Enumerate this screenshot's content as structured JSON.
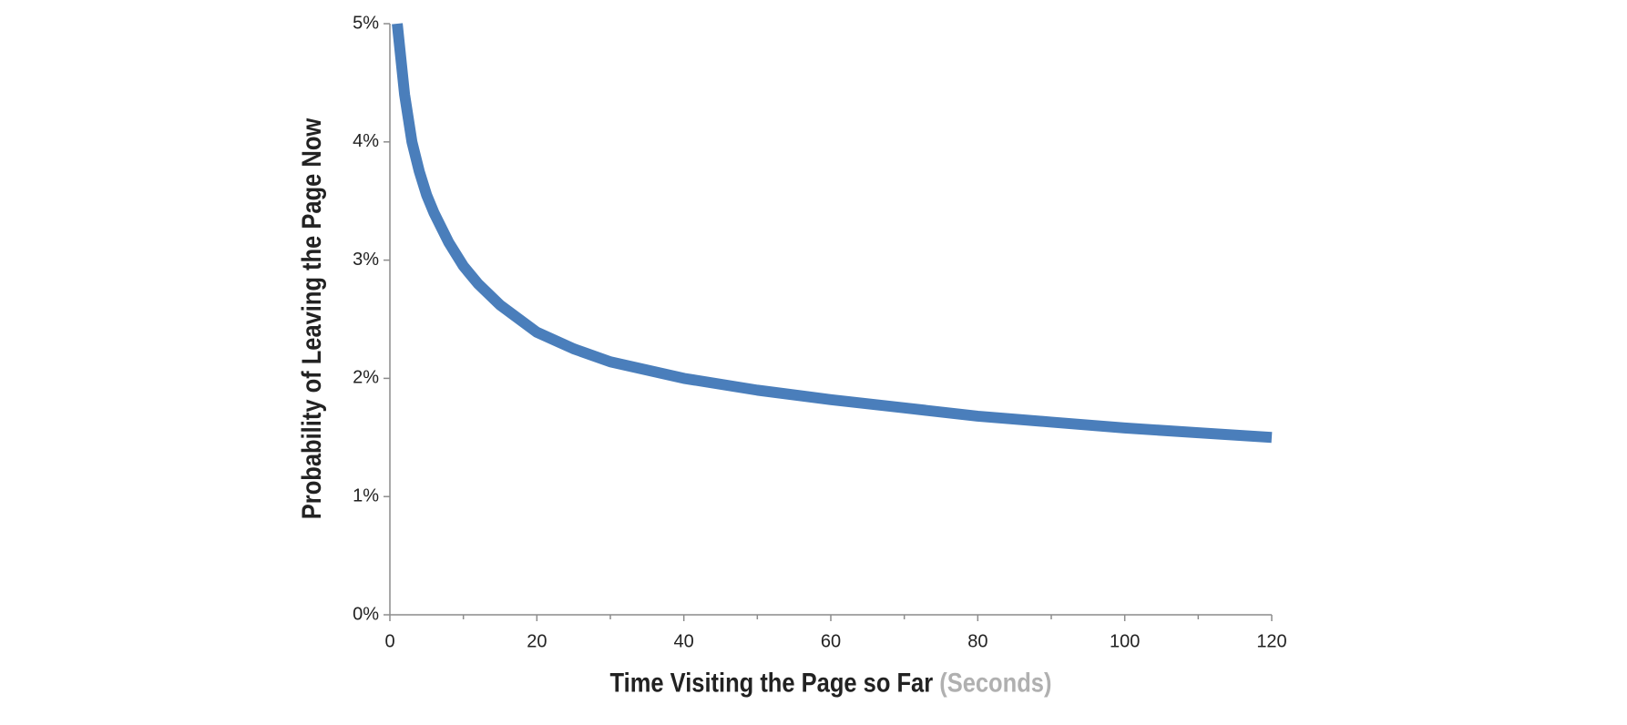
{
  "chart_data": {
    "type": "line",
    "ylabel": "Probability of Leaving  the Page Now",
    "xlabel": "Time Visiting the Page so Far",
    "xlabel_unit": "(Seconds)",
    "x": [
      1,
      2,
      3,
      4,
      5,
      6,
      8,
      10,
      12,
      15,
      20,
      25,
      30,
      40,
      50,
      60,
      70,
      80,
      90,
      100,
      110,
      120
    ],
    "series": [
      {
        "color": "#4a7ebb",
        "values": [
          5.0,
          4.4,
          4.0,
          3.75,
          3.55,
          3.4,
          3.15,
          2.95,
          2.8,
          2.62,
          2.39,
          2.25,
          2.14,
          2.0,
          1.9,
          1.82,
          1.75,
          1.68,
          1.63,
          1.58,
          1.54,
          1.5
        ]
      }
    ],
    "xlim": [
      0,
      120
    ],
    "xticks": [
      0,
      20,
      40,
      60,
      80,
      100,
      120
    ],
    "xminor_ticks": [
      10,
      30,
      50,
      70,
      90,
      110
    ],
    "ylim": [
      0,
      5
    ],
    "yticks": [
      {
        "value": 0,
        "label": "0%"
      },
      {
        "value": 1,
        "label": "1%"
      },
      {
        "value": 2,
        "label": "2%"
      },
      {
        "value": 3,
        "label": "3%"
      },
      {
        "value": 4,
        "label": "4%"
      },
      {
        "value": 5,
        "label": "5%"
      }
    ]
  }
}
